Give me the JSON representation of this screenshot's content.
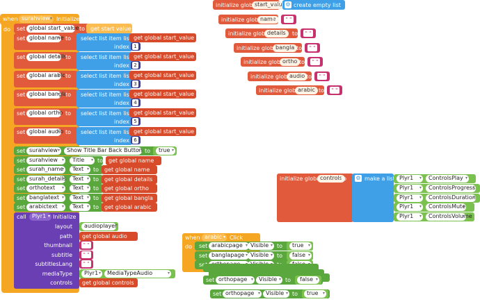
{
  "when_init": {
    "when": "when",
    "component": "surahview",
    "event": "Initialize",
    "do": "do"
  },
  "kw": {
    "set": "set",
    "to": "to",
    "get": "get",
    "index": "index",
    "select": "select list item list",
    "call": "call",
    "initialize_global": "initialize global",
    "create_empty_list": "create empty list",
    "make_a_list": "make a list",
    "empty_text": "\" \""
  },
  "get_start_value": "get start value",
  "set_global_rows": [
    {
      "var": "global start_value"
    },
    {
      "var": "global name",
      "index": "1"
    },
    {
      "var": "global details",
      "index": "2"
    },
    {
      "var": "global arabic",
      "index": "3"
    },
    {
      "var": "global bangla",
      "index": "4"
    },
    {
      "var": "global ortho",
      "index": "5"
    },
    {
      "var": "global audio",
      "index": "6"
    }
  ],
  "get_global_start_value": "get global start_value",
  "property_rows": [
    {
      "comp": "surahview",
      "prop": "Show Title Bar Back Button",
      "val": "true"
    },
    {
      "comp": "surahview",
      "prop": "Title",
      "val": "get global name"
    },
    {
      "comp": "surah_name",
      "prop": "Text",
      "val": "get global name"
    },
    {
      "comp": "surah_details",
      "prop": "Text",
      "val": "get global details"
    },
    {
      "comp": "orthotext",
      "prop": "Text",
      "val": "get global ortho"
    },
    {
      "comp": "banglatext",
      "prop": "Text",
      "val": "get global bangla"
    },
    {
      "comp": "arabictext",
      "prop": "Text",
      "val": "get global arabic"
    }
  ],
  "plyr_call": {
    "component": "Plyr1",
    "method": "Initialize",
    "args": [
      {
        "name": "layout",
        "value": "audioplayer"
      },
      {
        "name": "path",
        "value": "get global audio"
      },
      {
        "name": "thumbnail",
        "value": ""
      },
      {
        "name": "subtitle",
        "value": ""
      },
      {
        "name": "subtitlesLang",
        "value": ""
      },
      {
        "name": "mediaType",
        "value": "Plyr1",
        "value2": "MediaTypeAudio"
      },
      {
        "name": "controls",
        "value": "get global controls"
      }
    ]
  },
  "globals": [
    {
      "name": "start_value"
    },
    {
      "name": "name"
    },
    {
      "name": "details"
    },
    {
      "name": "bangla"
    },
    {
      "name": "ortho"
    },
    {
      "name": "audio"
    },
    {
      "name": "arabic"
    }
  ],
  "controls_global": {
    "name": "controls",
    "items": [
      {
        "comp": "Plyr1",
        "val": "ControlsPlay"
      },
      {
        "comp": "Plyr1",
        "val": "ControlsProgress"
      },
      {
        "comp": "Plyr1",
        "val": "ControlsDuration"
      },
      {
        "comp": "Plyr1",
        "val": "ControlsMute"
      },
      {
        "comp": "Plyr1",
        "val": "ControlsVolume"
      }
    ]
  },
  "when_click": {
    "when": "when",
    "component": "arabic",
    "event": "Click",
    "do": "do",
    "rows": [
      {
        "comp": "arabicpage",
        "prop": "Visible",
        "val": "true"
      },
      {
        "comp": "banglapage",
        "prop": "Visible",
        "val": "false"
      },
      {
        "comp": "orthopage",
        "prop": "Visible",
        "val": "false"
      }
    ],
    "overlap_rows": [
      {
        "comp": "orthopage",
        "prop": "Visible",
        "val": "false"
      },
      {
        "comp": "orthopage",
        "prop": "Visible",
        "val": "true"
      }
    ]
  }
}
